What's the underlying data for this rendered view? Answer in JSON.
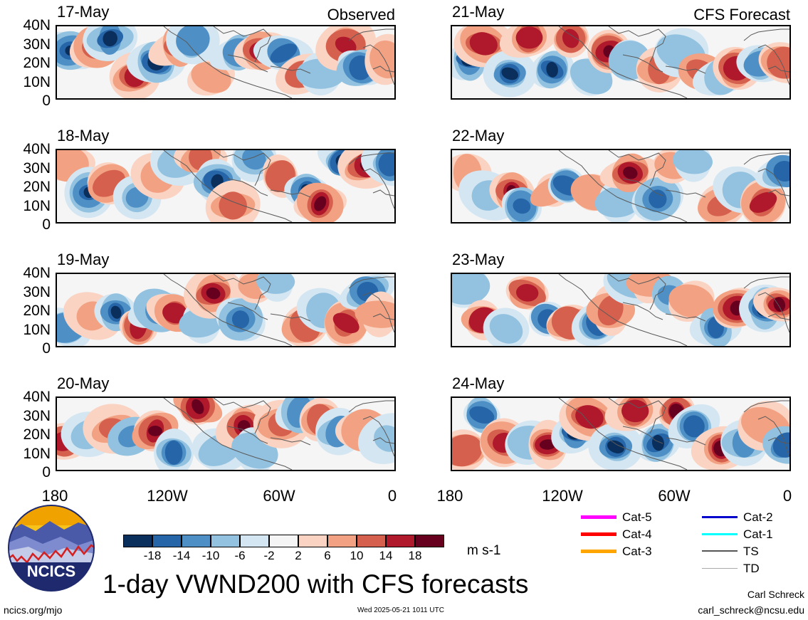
{
  "panels": {
    "left": [
      {
        "date": "17-May",
        "corner": "Observed"
      },
      {
        "date": "18-May",
        "corner": ""
      },
      {
        "date": "19-May",
        "corner": ""
      },
      {
        "date": "20-May",
        "corner": ""
      }
    ],
    "right": [
      {
        "date": "21-May",
        "corner": "CFS Forecast"
      },
      {
        "date": "22-May",
        "corner": ""
      },
      {
        "date": "23-May",
        "corner": ""
      },
      {
        "date": "24-May",
        "corner": ""
      }
    ]
  },
  "lat_labels": [
    "40N",
    "30N",
    "20N",
    "10N",
    "0"
  ],
  "lon_labels": [
    "180",
    "120W",
    "60W",
    "0"
  ],
  "colorbar": {
    "ticks": [
      "-18",
      "-14",
      "-10",
      "-6",
      "-2",
      "2",
      "6",
      "10",
      "14",
      "18"
    ],
    "colors": [
      "#0a2f5c",
      "#2666a8",
      "#4e90c6",
      "#92c2e0",
      "#d4e6f2",
      "#f5f5f5",
      "#fad3c2",
      "#f2a182",
      "#d6604e",
      "#b0182c",
      "#67001f"
    ],
    "units": "m s-1"
  },
  "storm_legend": [
    {
      "label": "Cat-5",
      "color": "#ff00ff"
    },
    {
      "label": "Cat-4",
      "color": "#ff0000"
    },
    {
      "label": "Cat-3",
      "color": "#ffa500"
    },
    {
      "label": "Cat-2",
      "color": "#0000cd"
    },
    {
      "label": "Cat-1",
      "color": "#00ffff"
    },
    {
      "label": "TS",
      "color": "#555555"
    },
    {
      "label": "TD",
      "color": "#aaaaaa"
    }
  ],
  "logo": {
    "text": "NCICS"
  },
  "title": "1-day VWND200 with CFS forecasts",
  "footer": {
    "url": "ncics.org/mjo",
    "timestamp": "Wed 2025-05-21 1011 UTC",
    "author": "Carl Schreck",
    "email": "carl_schreck@ncsu.edu"
  }
}
